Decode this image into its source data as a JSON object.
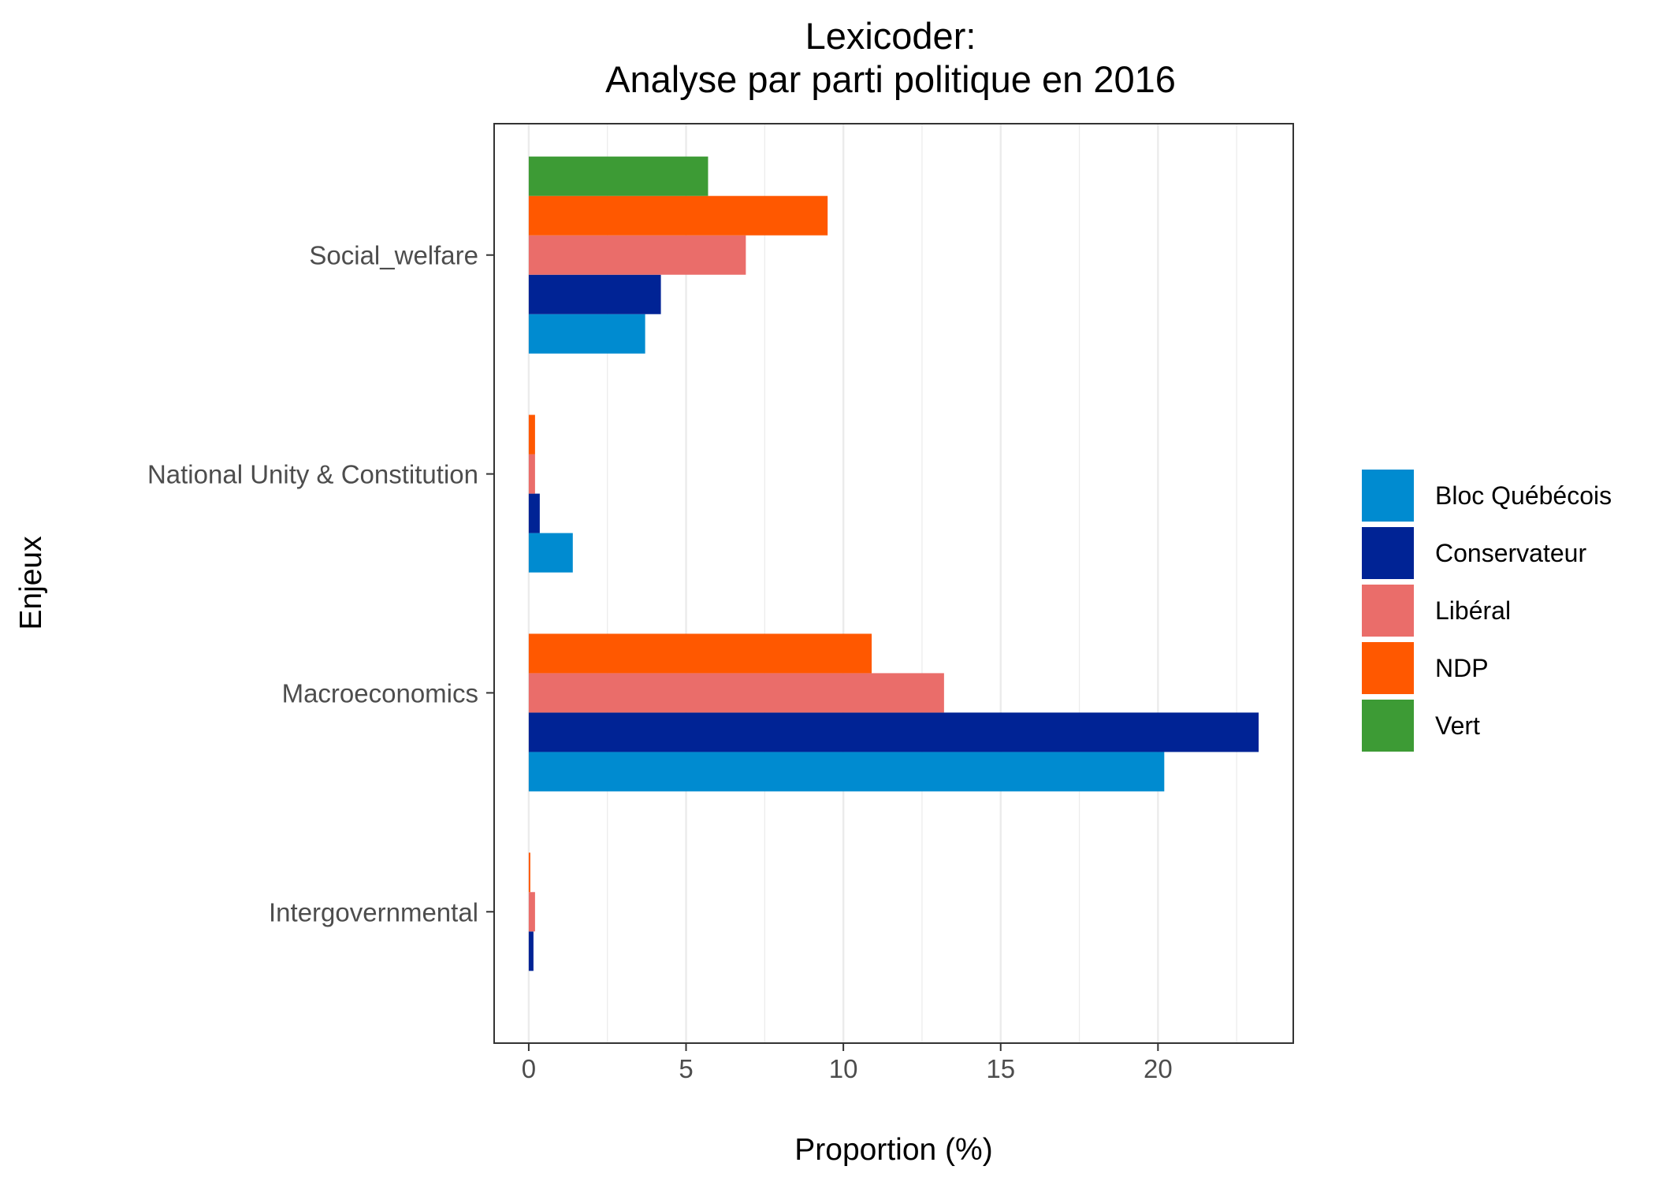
{
  "chart_data": {
    "type": "bar",
    "orientation": "horizontal",
    "title_lines": [
      "Lexicoder:",
      "Analyse par parti politique en 2016"
    ],
    "xlabel": "Proportion (%)",
    "ylabel": "Enjeux",
    "xlim": [
      -1.1,
      24.3
    ],
    "xticks": [
      0,
      5,
      10,
      15,
      20
    ],
    "grid": true,
    "legend_position": "right",
    "categories": [
      "Social_welfare",
      "National Unity & Constitution",
      "Macroeconomics",
      "Intergovernmental"
    ],
    "series": [
      {
        "name": "Bloc Québécois",
        "color": "#008BD0",
        "values": [
          3.7,
          1.4,
          20.2,
          null
        ]
      },
      {
        "name": "Conservateur",
        "color": "#002395",
        "values": [
          4.2,
          0.35,
          23.2,
          0.15
        ]
      },
      {
        "name": "Libéral",
        "color": "#EA6D6A",
        "values": [
          6.9,
          0.2,
          13.2,
          0.2
        ]
      },
      {
        "name": "NDP",
        "color": "#FF5800",
        "values": [
          9.5,
          0.2,
          10.9,
          0.05
        ]
      },
      {
        "name": "Vert",
        "color": "#3D9B35",
        "values": [
          5.7,
          null,
          null,
          null
        ]
      }
    ]
  }
}
